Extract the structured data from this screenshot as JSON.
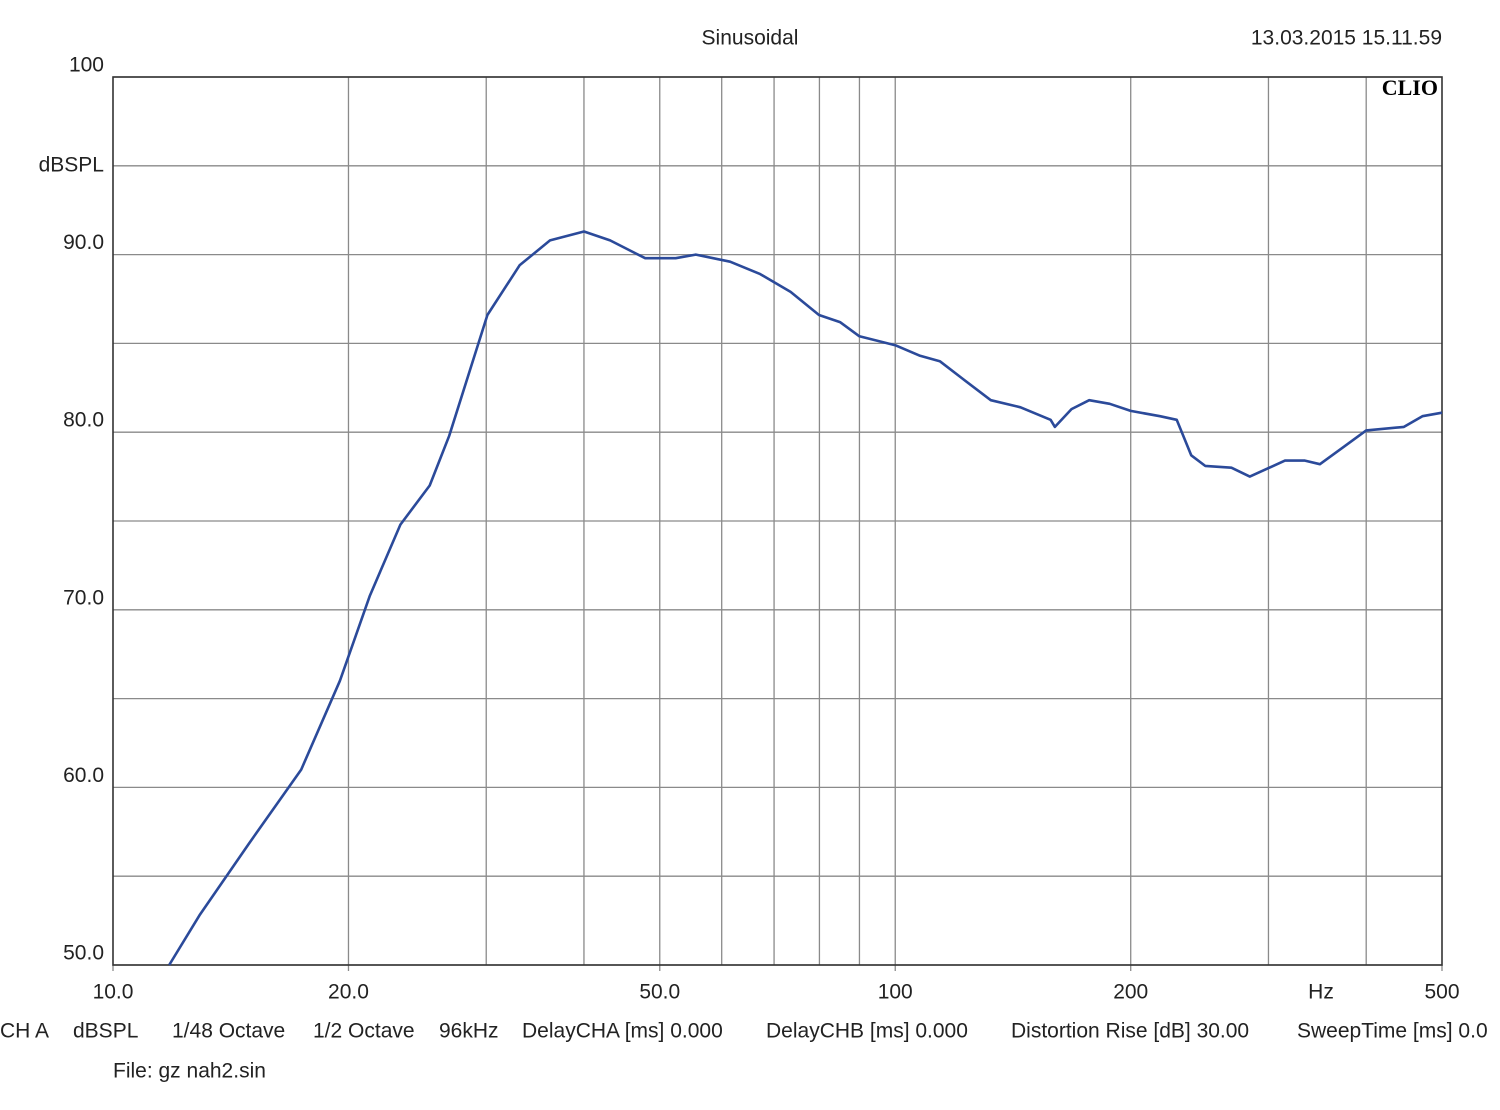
{
  "chart_data": {
    "type": "line",
    "title": "Sinusoidal",
    "timestamp": "13.03.2015 15.11.59",
    "brand": "CLIO",
    "y_label": "dBSPL",
    "x_label": "Hz",
    "x_scale": "log",
    "grid": true,
    "xlim": [
      10,
      500
    ],
    "ylim": [
      50,
      100
    ],
    "xticks": [
      {
        "value": 10,
        "label": "10.0"
      },
      {
        "value": 20,
        "label": "20.0"
      },
      {
        "value": 50,
        "label": "50.0"
      },
      100,
      200,
      500
    ],
    "xgrid": [
      20,
      30,
      40,
      50,
      60,
      70,
      80,
      90,
      100,
      200,
      300,
      400
    ],
    "yticks": [
      {
        "value": 50,
        "label": "50.0"
      },
      {
        "value": 60,
        "label": "60.0"
      },
      {
        "value": 70,
        "label": "70.0"
      },
      {
        "value": 80,
        "label": "80.0"
      },
      {
        "value": 90,
        "label": "90.0"
      },
      100
    ],
    "ygrid": [
      55,
      65,
      75,
      85,
      95
    ],
    "series": [
      {
        "name": "CH A",
        "color": "#2b4a9a",
        "x": [
          11.8,
          12.9,
          14.9,
          17.4,
          19.5,
          21.3,
          23.3,
          25.4,
          26.9,
          28.6,
          30.1,
          33.1,
          36.2,
          40,
          43.2,
          47.9,
          52.4,
          55.6,
          61.5,
          67.2,
          73.5,
          79.9,
          85,
          90,
          100,
          107.6,
          114,
          122,
          132.5,
          144.6,
          158,
          160,
          168,
          177,
          188,
          200,
          218,
          229,
          239,
          249,
          269,
          284,
          315,
          334,
          349,
          375,
          400,
          447,
          472,
          500
        ],
        "values": [
          50.0,
          52.8,
          56.8,
          61.0,
          66.0,
          70.8,
          74.8,
          77.0,
          79.8,
          83.5,
          86.6,
          89.4,
          90.8,
          91.3,
          90.8,
          89.8,
          89.8,
          90.0,
          89.6,
          88.9,
          87.9,
          86.6,
          86.2,
          85.4,
          84.9,
          84.3,
          84.0,
          83.0,
          81.8,
          81.4,
          80.7,
          80.3,
          81.3,
          81.8,
          81.6,
          81.2,
          80.9,
          80.7,
          78.7,
          78.1,
          78.0,
          77.5,
          78.4,
          78.4,
          78.2,
          79.2,
          80.1,
          80.3,
          80.9,
          81.1
        ]
      }
    ],
    "footer": [
      "CH A",
      "dBSPL",
      "1/48 Octave",
      "1/2 Octave",
      "96kHz",
      "DelayCHA [ms] 0.000",
      "DelayCHB [ms] 0.000",
      "Distortion Rise [dB] 30.00",
      "SweepTime [ms] 0.0"
    ],
    "file": "File: gz nah2.sin"
  }
}
